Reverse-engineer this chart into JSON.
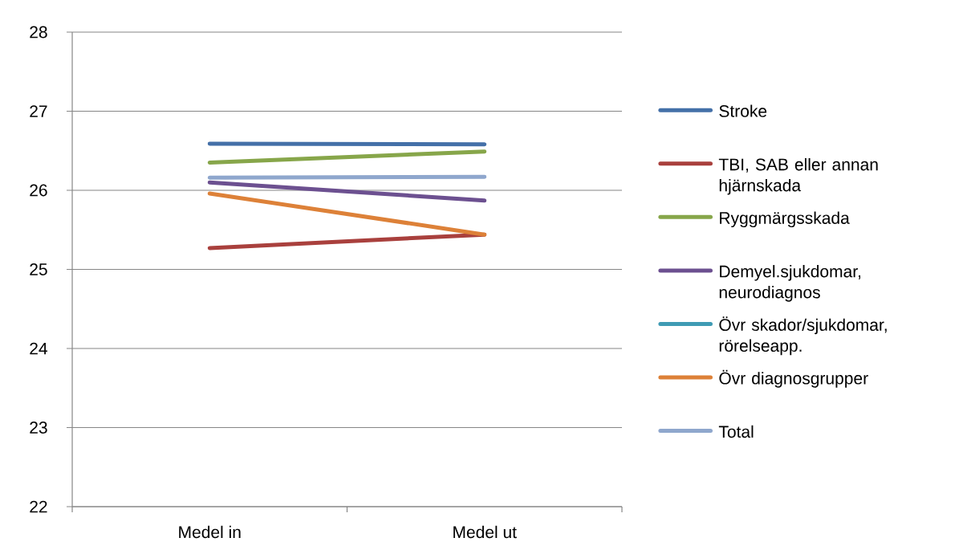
{
  "chart_data": {
    "type": "line",
    "categories": [
      "Medel in",
      "Medel ut"
    ],
    "series": [
      {
        "name": "Stroke",
        "color": "#4470a8",
        "values": [
          26.59,
          26.58
        ]
      },
      {
        "name": "TBI, SAB eller annan hjärnskada",
        "color": "#a9403d",
        "values": [
          25.27,
          25.44
        ]
      },
      {
        "name": "Ryggmärgsskada",
        "color": "#87a64a",
        "values": [
          26.35,
          26.49
        ]
      },
      {
        "name": "Demyel.sjukdomar, neurodiagnos",
        "color": "#6c5090",
        "values": [
          26.1,
          25.87
        ]
      },
      {
        "name": "Övr skador/sjukdomar, rörelseapp.",
        "color": "#3f9bb4",
        "values": [
          null,
          null
        ]
      },
      {
        "name": "Övr diagnosgrupper",
        "color": "#dd8138",
        "values": [
          25.96,
          25.44
        ]
      },
      {
        "name": "Total",
        "color": "#8fa7cd",
        "values": [
          26.16,
          26.17
        ]
      }
    ],
    "ylim": [
      22,
      28
    ],
    "yticks": [
      22,
      23,
      24,
      25,
      26,
      27,
      28
    ],
    "grid": "y",
    "legend": "right",
    "line_style": "solid",
    "marker": "none"
  }
}
